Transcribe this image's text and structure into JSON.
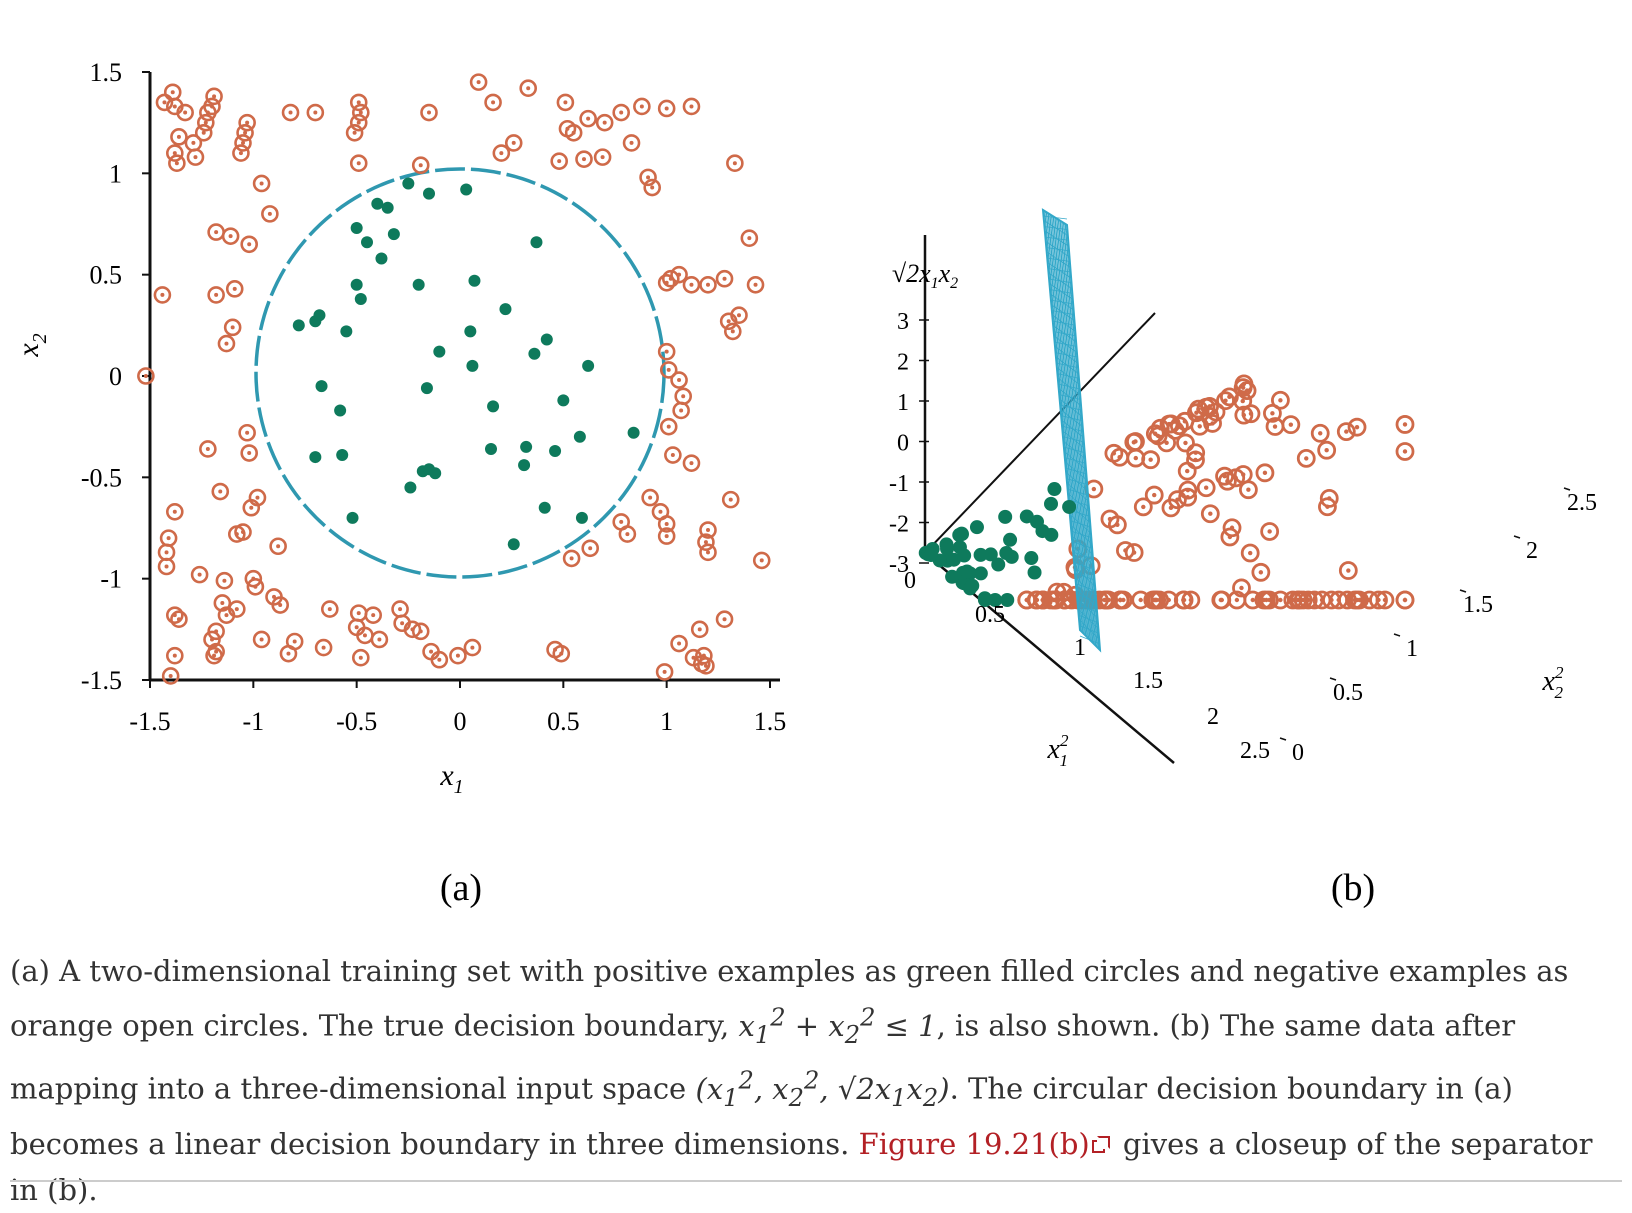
{
  "chart_data": [
    {
      "type": "scatter",
      "panel_label": "(a)",
      "xlabel": "x1",
      "ylabel": "x2",
      "xlim": [
        -1.5,
        1.5
      ],
      "ylim": [
        -1.5,
        1.5
      ],
      "xticks": [
        "-1.5",
        "-1",
        "-0.5",
        "0",
        "0.5",
        "1",
        "1.5"
      ],
      "yticks": [
        "1.5",
        "1",
        "0.5",
        "0",
        "-0.5",
        "-1",
        "-1.5"
      ],
      "grid": false,
      "boundary": "circle x1^2 + x2^2 = 1",
      "positive_color": "#0e7a5c",
      "negative_color": "#cf6a49",
      "boundary_color": "#2f98b0",
      "series": [
        {
          "class": "positive",
          "marker": "filled-circle",
          "points": [
            [
              -0.25,
              0.95
            ],
            [
              -0.15,
              0.9
            ],
            [
              0.03,
              0.92
            ],
            [
              -0.4,
              0.85
            ],
            [
              -0.35,
              0.83
            ],
            [
              -0.5,
              0.73
            ],
            [
              -0.32,
              0.7
            ],
            [
              -0.45,
              0.66
            ],
            [
              -0.38,
              0.58
            ],
            [
              0.37,
              0.66
            ],
            [
              -0.5,
              0.45
            ],
            [
              -0.48,
              0.38
            ],
            [
              -0.2,
              0.45
            ],
            [
              0.07,
              0.47
            ],
            [
              -0.68,
              0.3
            ],
            [
              -0.7,
              0.27
            ],
            [
              -0.78,
              0.25
            ],
            [
              0.22,
              0.33
            ],
            [
              -0.55,
              0.22
            ],
            [
              0.05,
              0.22
            ],
            [
              0.42,
              0.18
            ],
            [
              -0.1,
              0.12
            ],
            [
              0.06,
              0.05
            ],
            [
              0.36,
              0.11
            ],
            [
              0.62,
              0.05
            ],
            [
              -0.67,
              -0.05
            ],
            [
              -0.16,
              -0.06
            ],
            [
              -0.58,
              -0.17
            ],
            [
              0.16,
              -0.15
            ],
            [
              0.5,
              -0.12
            ],
            [
              0.84,
              -0.28
            ],
            [
              0.58,
              -0.3
            ],
            [
              0.32,
              -0.35
            ],
            [
              0.15,
              -0.36
            ],
            [
              0.46,
              -0.37
            ],
            [
              -0.7,
              -0.4
            ],
            [
              -0.57,
              -0.39
            ],
            [
              0.31,
              -0.44
            ],
            [
              -0.18,
              -0.47
            ],
            [
              -0.15,
              -0.46
            ],
            [
              -0.12,
              -0.48
            ],
            [
              -0.24,
              -0.55
            ],
            [
              0.41,
              -0.65
            ],
            [
              -0.52,
              -0.7
            ],
            [
              0.59,
              -0.7
            ],
            [
              0.26,
              -0.83
            ]
          ]
        },
        {
          "class": "negative",
          "marker": "open-circle",
          "points": [
            [
              -1.39,
              1.4
            ],
            [
              -1.43,
              1.35
            ],
            [
              -1.38,
              1.33
            ],
            [
              -1.33,
              1.3
            ],
            [
              -1.36,
              1.18
            ],
            [
              -1.38,
              1.1
            ],
            [
              -1.37,
              1.05
            ],
            [
              -1.19,
              1.38
            ],
            [
              -1.2,
              1.33
            ],
            [
              -1.22,
              1.3
            ],
            [
              -1.23,
              1.25
            ],
            [
              -1.24,
              1.2
            ],
            [
              -1.29,
              1.15
            ],
            [
              -1.28,
              1.08
            ],
            [
              -1.03,
              1.25
            ],
            [
              -1.04,
              1.2
            ],
            [
              -1.05,
              1.15
            ],
            [
              -1.06,
              1.1
            ],
            [
              -0.82,
              1.3
            ],
            [
              -0.7,
              1.3
            ],
            [
              -0.49,
              1.35
            ],
            [
              -0.48,
              1.3
            ],
            [
              -0.49,
              1.25
            ],
            [
              -0.51,
              1.2
            ],
            [
              -0.49,
              1.05
            ],
            [
              -0.15,
              1.3
            ],
            [
              0.09,
              1.45
            ],
            [
              0.16,
              1.35
            ],
            [
              0.33,
              1.42
            ],
            [
              0.2,
              1.1
            ],
            [
              0.26,
              1.15
            ],
            [
              0.51,
              1.35
            ],
            [
              0.52,
              1.22
            ],
            [
              0.55,
              1.2
            ],
            [
              0.48,
              1.06
            ],
            [
              0.6,
              1.07
            ],
            [
              0.69,
              1.08
            ],
            [
              0.62,
              1.27
            ],
            [
              0.7,
              1.25
            ],
            [
              0.78,
              1.3
            ],
            [
              0.83,
              1.15
            ],
            [
              0.88,
              1.33
            ],
            [
              1.0,
              1.32
            ],
            [
              1.12,
              1.33
            ],
            [
              0.91,
              0.98
            ],
            [
              0.93,
              0.93
            ],
            [
              1.33,
              1.05
            ],
            [
              -0.19,
              1.04
            ],
            [
              -0.96,
              0.95
            ],
            [
              -0.92,
              0.8
            ],
            [
              -1.18,
              0.71
            ],
            [
              -1.11,
              0.69
            ],
            [
              -1.02,
              0.65
            ],
            [
              1.4,
              0.68
            ],
            [
              -1.44,
              0.4
            ],
            [
              -1.18,
              0.4
            ],
            [
              -1.09,
              0.43
            ],
            [
              -1.1,
              0.24
            ],
            [
              -1.13,
              0.16
            ],
            [
              1.0,
              0.46
            ],
            [
              1.02,
              0.48
            ],
            [
              1.06,
              0.5
            ],
            [
              1.12,
              0.45
            ],
            [
              1.2,
              0.45
            ],
            [
              1.28,
              0.48
            ],
            [
              1.43,
              0.45
            ],
            [
              1.35,
              0.3
            ],
            [
              1.3,
              0.27
            ],
            [
              1.32,
              0.22
            ],
            [
              1.0,
              0.12
            ],
            [
              1.01,
              0.03
            ],
            [
              1.06,
              -0.02
            ],
            [
              1.08,
              -0.1
            ],
            [
              1.07,
              -0.17
            ],
            [
              1.01,
              -0.25
            ],
            [
              -1.52,
              0.0
            ],
            [
              -1.22,
              -0.36
            ],
            [
              -1.03,
              -0.28
            ],
            [
              -1.02,
              -0.38
            ],
            [
              1.03,
              -0.39
            ],
            [
              1.12,
              -0.43
            ],
            [
              -1.16,
              -0.57
            ],
            [
              -0.98,
              -0.6
            ],
            [
              -1.01,
              -0.65
            ],
            [
              -1.38,
              -0.67
            ],
            [
              -1.05,
              -0.77
            ],
            [
              -1.08,
              -0.78
            ],
            [
              -1.41,
              -0.8
            ],
            [
              -1.42,
              -0.87
            ],
            [
              -1.42,
              -0.94
            ],
            [
              0.92,
              -0.6
            ],
            [
              0.97,
              -0.67
            ],
            [
              1.0,
              -0.73
            ],
            [
              1.0,
              -0.79
            ],
            [
              1.31,
              -0.61
            ],
            [
              1.2,
              -0.76
            ],
            [
              1.19,
              -0.82
            ],
            [
              1.2,
              -0.87
            ],
            [
              0.78,
              -0.72
            ],
            [
              0.81,
              -0.78
            ],
            [
              0.63,
              -0.85
            ],
            [
              0.54,
              -0.9
            ],
            [
              1.46,
              -0.91
            ],
            [
              -0.88,
              -0.84
            ],
            [
              -1.26,
              -0.98
            ],
            [
              -1.14,
              -1.01
            ],
            [
              -1.0,
              -1.0
            ],
            [
              -0.99,
              -1.04
            ],
            [
              -0.9,
              -1.09
            ],
            [
              -0.87,
              -1.13
            ],
            [
              -1.15,
              -1.12
            ],
            [
              -1.13,
              -1.18
            ],
            [
              -1.36,
              -1.2
            ],
            [
              -1.38,
              -1.18
            ],
            [
              -1.18,
              -1.26
            ],
            [
              -1.2,
              -1.3
            ],
            [
              -1.08,
              -1.15
            ],
            [
              -1.18,
              -1.36
            ],
            [
              -1.19,
              -1.38
            ],
            [
              -1.4,
              -1.48
            ],
            [
              -1.38,
              -1.38
            ],
            [
              -0.63,
              -1.15
            ],
            [
              -0.49,
              -1.17
            ],
            [
              -0.42,
              -1.18
            ],
            [
              -0.29,
              -1.15
            ],
            [
              -0.28,
              -1.22
            ],
            [
              -0.5,
              -1.24
            ],
            [
              -0.46,
              -1.28
            ],
            [
              -0.39,
              -1.3
            ],
            [
              -0.23,
              -1.25
            ],
            [
              -0.19,
              -1.26
            ],
            [
              -0.96,
              -1.3
            ],
            [
              -0.8,
              -1.31
            ],
            [
              -0.83,
              -1.37
            ],
            [
              -0.66,
              -1.34
            ],
            [
              -0.48,
              -1.39
            ],
            [
              -0.14,
              -1.36
            ],
            [
              -0.1,
              -1.4
            ],
            [
              -0.01,
              -1.38
            ],
            [
              0.06,
              -1.34
            ],
            [
              0.46,
              -1.35
            ],
            [
              0.49,
              -1.37
            ],
            [
              1.06,
              -1.32
            ],
            [
              1.16,
              -1.25
            ],
            [
              1.28,
              -1.2
            ],
            [
              1.13,
              -1.39
            ],
            [
              1.18,
              -1.38
            ],
            [
              1.17,
              -1.42
            ],
            [
              1.19,
              -1.43
            ],
            [
              0.99,
              -1.46
            ]
          ]
        }
      ]
    },
    {
      "type": "scatter",
      "panel_label": "(b)",
      "projection": "3d",
      "xlabel": "x1²",
      "ylabel": "x2²",
      "zlabel": "√2x1x2",
      "xlim": [
        0,
        2.5
      ],
      "ylim": [
        0,
        2.5
      ],
      "zlim": [
        -3,
        3
      ],
      "xticks": [
        "0",
        "0.5",
        "1",
        "1.5",
        "2",
        "2.5"
      ],
      "yticks": [
        "0",
        "0.5",
        "1",
        "1.5",
        "2",
        "2.5"
      ],
      "zticks": [
        "3",
        "2",
        "1",
        "0",
        "-1",
        "-2",
        "-3"
      ],
      "separator": "plane x1² + x2² = 1",
      "separator_color": "#33a8c9"
    }
  ],
  "caption": {
    "part1": "(a) A two-dimensional training set with positive examples as green filled circles and negative examples as orange open circles. The true decision boundary,",
    "part2": ", is also shown. (b) The same data after mapping into a three-dimensional input space",
    "part3": ". The circular decision boundary in (a) becomes a linear decision boundary in three dimensions.",
    "link": "Figure 19.21(b)",
    "part4": "gives a closeup of the separator in (b)."
  }
}
